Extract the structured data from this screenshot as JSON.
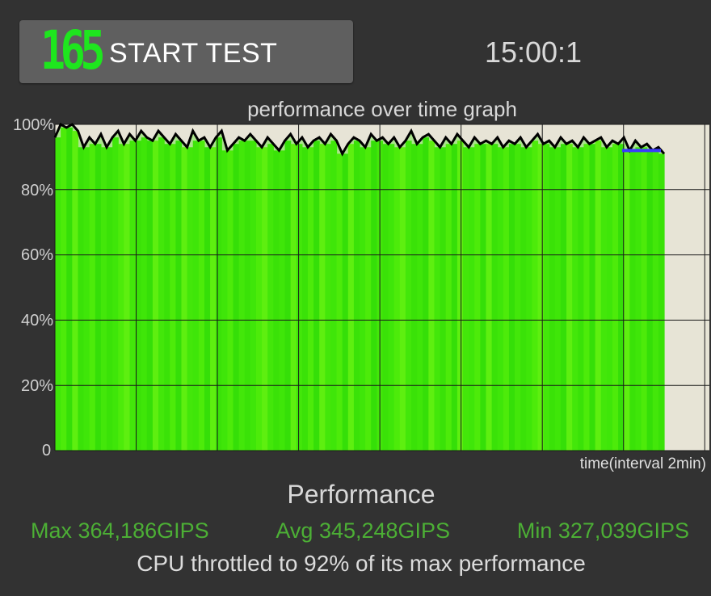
{
  "header": {
    "fps": "165",
    "start_button_label": "START TEST",
    "timer": "15:00:1"
  },
  "graph": {
    "title": "performance over time graph",
    "y_ticks": [
      "100%",
      "80%",
      "60%",
      "40%",
      "20%",
      "0"
    ],
    "x_caption": "time(interval 2min)"
  },
  "chart_data": {
    "type": "area",
    "title": "performance over time graph",
    "xlabel": "time(interval 2min)",
    "ylabel": "",
    "ylim": [
      0,
      100
    ],
    "grid": true,
    "y_ticks": [
      0,
      20,
      40,
      60,
      80,
      100
    ],
    "x_range_minutes": [
      0,
      15
    ],
    "series": [
      {
        "values": [
          96,
          100,
          99,
          100,
          98,
          93,
          96,
          94,
          97,
          93,
          96,
          98,
          94,
          97,
          95,
          98,
          96,
          95,
          98,
          96,
          94,
          97,
          95,
          93,
          98,
          95,
          96,
          93,
          96,
          98,
          92,
          94,
          96,
          95,
          97,
          95,
          93,
          96,
          94,
          92,
          95,
          97,
          94,
          96,
          93,
          95,
          96,
          94,
          97,
          95,
          91,
          94,
          96,
          95,
          93,
          97,
          95,
          96,
          94,
          96,
          93,
          95,
          98,
          94,
          96,
          97,
          95,
          93,
          96,
          94,
          97,
          95,
          93,
          96,
          94,
          95,
          94,
          96,
          93,
          95,
          94,
          96,
          93,
          95,
          97,
          94,
          95,
          93,
          96,
          94,
          95,
          93,
          96,
          94,
          95,
          96,
          93,
          95,
          94,
          96,
          92,
          95,
          93,
          94,
          92,
          93,
          91
        ]
      }
    ],
    "current_segment_value": 92,
    "colors": {
      "fill": "#3fe60a",
      "line": "#000000",
      "current": "#3a3aff",
      "background": "#e7e4d6"
    }
  },
  "stats": {
    "title": "Performance",
    "max": "Max 364,186GIPS",
    "avg": "Avg 345,248GIPS",
    "min": "Min 327,039GIPS",
    "throttle": "CPU throttled to 92% of its max performance"
  }
}
